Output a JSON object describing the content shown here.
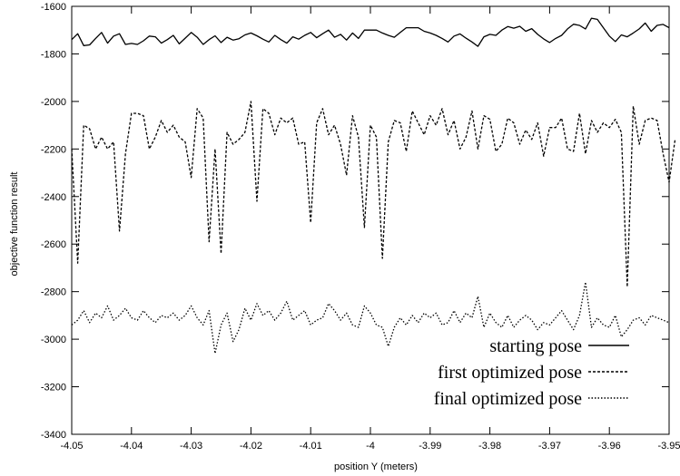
{
  "chart_data": {
    "type": "line",
    "title": "",
    "xlabel": "position Y (meters)",
    "ylabel": "objective function result",
    "xlim": [
      -4.05,
      -3.95
    ],
    "ylim": [
      -3400,
      -1600
    ],
    "grid": false,
    "legend_position": "bottom-right",
    "x_ticks": [
      -4.05,
      -4.04,
      -4.03,
      -4.02,
      -4.01,
      -4.0,
      -3.99,
      -3.98,
      -3.97,
      -3.96,
      -3.95
    ],
    "x_tick_labels": [
      "-4.05",
      "-4.04",
      "-4.03",
      "-4.02",
      "-4.01",
      "-4",
      "-3.99",
      "-3.98",
      "-3.97",
      "-3.96",
      "-3.95"
    ],
    "y_ticks": [
      -1600,
      -1800,
      -2000,
      -2200,
      -2400,
      -2600,
      -2800,
      -3000,
      -3200,
      -3400
    ],
    "y_tick_labels": [
      "-1600",
      "-1800",
      "-2000",
      "-2200",
      "-2400",
      "-2600",
      "-2800",
      "-3000",
      "-3200",
      "-3400"
    ],
    "series": [
      {
        "name": "starting pose",
        "style": "solid",
        "x_start": -4.05,
        "x_step": 0.001,
        "values": [
          -1740,
          -1715,
          -1765,
          -1762,
          -1735,
          -1710,
          -1755,
          -1725,
          -1715,
          -1760,
          -1756,
          -1760,
          -1745,
          -1725,
          -1728,
          -1755,
          -1740,
          -1722,
          -1758,
          -1734,
          -1710,
          -1730,
          -1760,
          -1740,
          -1724,
          -1752,
          -1730,
          -1742,
          -1736,
          -1720,
          -1712,
          -1724,
          -1738,
          -1750,
          -1722,
          -1740,
          -1755,
          -1728,
          -1738,
          -1722,
          -1710,
          -1732,
          -1715,
          -1700,
          -1730,
          -1718,
          -1742,
          -1712,
          -1735,
          -1700,
          -1700,
          -1700,
          -1712,
          -1722,
          -1730,
          -1710,
          -1690,
          -1690,
          -1690,
          -1705,
          -1712,
          -1722,
          -1735,
          -1750,
          -1725,
          -1716,
          -1734,
          -1750,
          -1768,
          -1728,
          -1718,
          -1722,
          -1700,
          -1685,
          -1692,
          -1684,
          -1705,
          -1694,
          -1718,
          -1737,
          -1752,
          -1735,
          -1722,
          -1695,
          -1675,
          -1680,
          -1695,
          -1650,
          -1655,
          -1690,
          -1725,
          -1748,
          -1720,
          -1728,
          -1712,
          -1695,
          -1670,
          -1705,
          -1680,
          -1676,
          -1690
        ]
      },
      {
        "name": "first optimized pose",
        "style": "dashed",
        "x_start": -4.05,
        "x_step": 0.001,
        "values": [
          -2200,
          -2680,
          -2100,
          -2115,
          -2200,
          -2150,
          -2200,
          -2170,
          -2545,
          -2220,
          -2050,
          -2050,
          -2060,
          -2200,
          -2150,
          -2080,
          -2130,
          -2100,
          -2150,
          -2170,
          -2320,
          -2030,
          -2070,
          -2590,
          -2200,
          -2640,
          -2130,
          -2180,
          -2160,
          -2130,
          -2000,
          -2420,
          -2030,
          -2050,
          -2140,
          -2070,
          -2090,
          -2070,
          -2180,
          -2170,
          -2510,
          -2090,
          -2030,
          -2140,
          -2100,
          -2180,
          -2310,
          -2060,
          -2150,
          -2530,
          -2100,
          -2150,
          -2660,
          -2170,
          -2080,
          -2090,
          -2210,
          -2040,
          -2090,
          -2140,
          -2060,
          -2100,
          -2030,
          -2140,
          -2080,
          -2200,
          -2150,
          -2040,
          -2200,
          -2060,
          -2075,
          -2210,
          -2180,
          -2070,
          -2090,
          -2180,
          -2120,
          -2160,
          -2090,
          -2230,
          -2110,
          -2110,
          -2070,
          -2200,
          -2210,
          -2050,
          -2220,
          -2080,
          -2130,
          -2090,
          -2110,
          -2075,
          -2130,
          -2780,
          -2020,
          -2180,
          -2080,
          -2070,
          -2080,
          -2220,
          -2340,
          -2160
        ]
      },
      {
        "name": "final optimized pose",
        "style": "dotted",
        "x_start": -4.05,
        "x_step": 0.001,
        "values": [
          -2940,
          -2920,
          -2880,
          -2930,
          -2890,
          -2910,
          -2860,
          -2920,
          -2900,
          -2870,
          -2910,
          -2920,
          -2880,
          -2910,
          -2930,
          -2900,
          -2910,
          -2890,
          -2920,
          -2900,
          -2860,
          -2910,
          -2940,
          -2880,
          -3060,
          -2940,
          -2890,
          -3010,
          -2960,
          -2870,
          -2920,
          -2850,
          -2900,
          -2880,
          -2920,
          -2890,
          -2840,
          -2920,
          -2900,
          -2880,
          -2940,
          -2920,
          -2910,
          -2850,
          -2880,
          -2920,
          -2890,
          -2940,
          -2950,
          -2860,
          -2890,
          -2940,
          -2950,
          -3030,
          -2950,
          -2910,
          -2940,
          -2900,
          -2930,
          -2890,
          -2910,
          -2890,
          -2940,
          -2930,
          -2880,
          -2930,
          -2890,
          -2910,
          -2820,
          -2950,
          -2890,
          -2930,
          -2950,
          -2900,
          -2950,
          -2920,
          -2900,
          -2920,
          -2960,
          -2930,
          -2940,
          -2910,
          -2880,
          -2920,
          -2960,
          -2900,
          -2760,
          -2950,
          -2910,
          -2940,
          -2950,
          -2900,
          -2990,
          -2960,
          -2920,
          -2910,
          -2940,
          -2900,
          -2910,
          -2920,
          -2930
        ]
      }
    ]
  }
}
